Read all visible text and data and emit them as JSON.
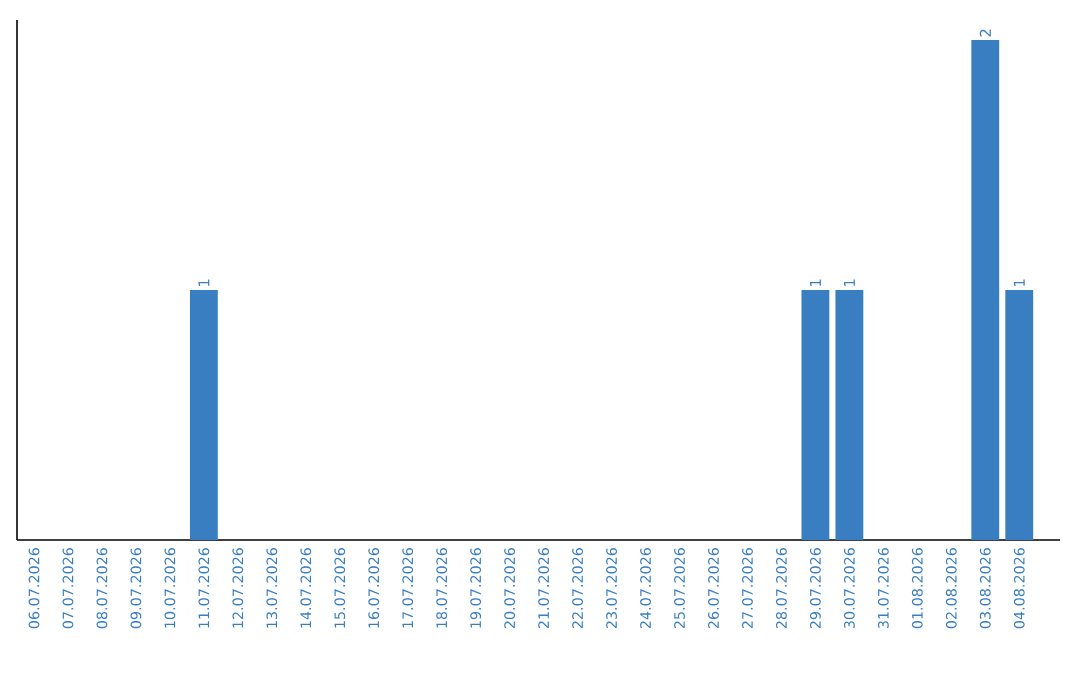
{
  "chart_data": {
    "type": "bar",
    "categories": [
      "06.07.2026",
      "07.07.2026",
      "08.07.2026",
      "09.07.2026",
      "10.07.2026",
      "11.07.2026",
      "12.07.2026",
      "13.07.2026",
      "14.07.2026",
      "15.07.2026",
      "16.07.2026",
      "17.07.2026",
      "18.07.2026",
      "19.07.2026",
      "20.07.2026",
      "21.07.2026",
      "22.07.2026",
      "23.07.2026",
      "24.07.2026",
      "25.07.2026",
      "26.07.2026",
      "27.07.2026",
      "28.07.2026",
      "29.07.2026",
      "30.07.2026",
      "31.07.2026",
      "01.08.2026",
      "02.08.2026",
      "03.08.2026",
      "04.08.2026"
    ],
    "values": [
      0,
      0,
      0,
      0,
      0,
      1,
      0,
      0,
      0,
      0,
      0,
      0,
      0,
      0,
      0,
      0,
      0,
      0,
      0,
      0,
      0,
      0,
      0,
      1,
      1,
      0,
      0,
      0,
      2,
      1
    ],
    "value_labels": [
      null,
      null,
      null,
      null,
      null,
      "1",
      null,
      null,
      null,
      null,
      null,
      null,
      null,
      null,
      null,
      null,
      null,
      null,
      null,
      null,
      null,
      null,
      null,
      "1",
      "1",
      null,
      null,
      null,
      "2",
      "1"
    ],
    "color": "#3a7ec2",
    "ylim": [
      0,
      2.08
    ],
    "tick_labels": "x"
  }
}
